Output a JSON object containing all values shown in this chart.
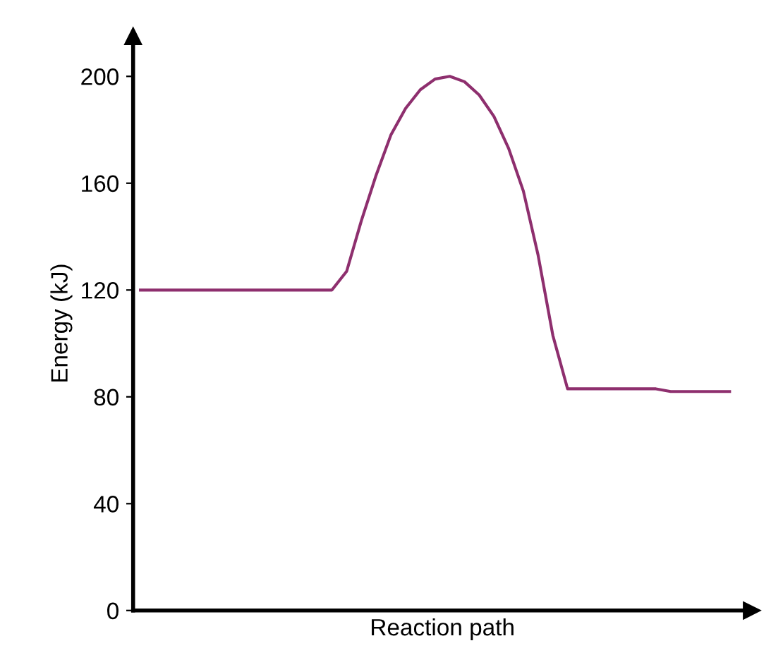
{
  "chart_data": {
    "type": "line",
    "xlabel": "Reaction path",
    "ylabel": "Energy (kJ)",
    "categories": [
      null,
      null,
      null,
      null,
      null,
      null,
      null,
      null,
      null,
      null,
      null,
      null,
      null,
      null,
      null,
      null,
      null,
      null,
      null,
      null,
      null,
      null,
      null,
      null,
      null,
      null,
      null,
      null,
      null,
      null,
      null,
      null,
      null,
      null,
      null,
      null,
      null,
      null,
      null,
      null,
      null
    ],
    "series": [
      {
        "color": "#8e2f6e",
        "values": [
          120,
          120,
          120,
          120,
          120,
          120,
          120,
          120,
          120,
          120,
          120,
          120,
          120,
          120,
          127,
          146,
          163,
          178,
          188,
          195,
          199,
          200,
          198,
          193,
          185,
          173,
          157,
          133,
          103,
          83,
          83,
          83,
          83,
          83,
          83,
          83,
          82,
          82,
          82,
          82,
          82
        ]
      }
    ],
    "ylim": [
      0,
      215
    ],
    "yticks": [
      0,
      40,
      80,
      120,
      160,
      200
    ],
    "grid": false,
    "legend": false,
    "marker": "none",
    "line_style": "solid",
    "tick_labels": "y"
  }
}
